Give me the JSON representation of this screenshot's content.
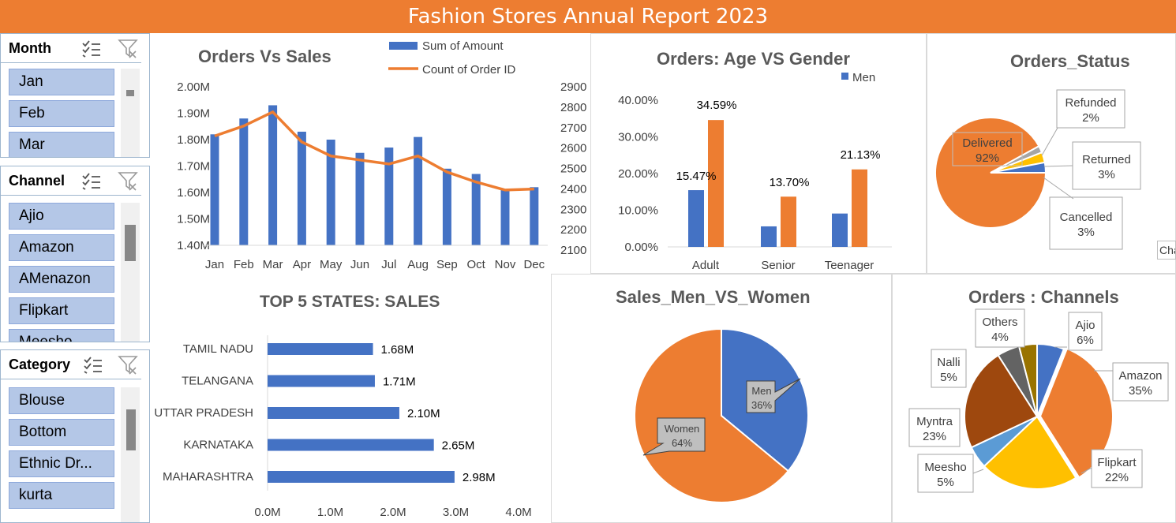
{
  "title": "Fashion Stores Annual Report 2023",
  "slicers": {
    "month": {
      "label": "Month",
      "items": [
        "Jan",
        "Feb",
        "Mar"
      ]
    },
    "channel": {
      "label": "Channel",
      "items": [
        "Ajio",
        "Amazon",
        "AMenazon",
        "Flipkart",
        "Meesho"
      ]
    },
    "category": {
      "label": "Category",
      "items": [
        "Blouse",
        "Bottom",
        "Ethnic Dr...",
        "kurta"
      ]
    }
  },
  "chart_data": [
    {
      "type": "bar",
      "title": "Orders Vs Sales",
      "categories": [
        "Jan",
        "Feb",
        "Mar",
        "Apr",
        "May",
        "Jun",
        "Jul",
        "Aug",
        "Sep",
        "Oct",
        "Nov",
        "Dec"
      ],
      "series": [
        {
          "name": "Sum of Amount",
          "type": "bar",
          "axis": "left",
          "values": [
            1.82,
            1.88,
            1.93,
            1.83,
            1.8,
            1.75,
            1.77,
            1.81,
            1.69,
            1.67,
            1.61,
            1.62
          ],
          "color": "#4472C4"
        },
        {
          "name": "Count of Order ID",
          "type": "line",
          "axis": "right",
          "values": [
            2670,
            2720,
            2790,
            2640,
            2570,
            2550,
            2530,
            2570,
            2490,
            2440,
            2400,
            2405
          ],
          "color": "#ED7D31"
        }
      ],
      "y_ticks": [
        "2.00M",
        "1.90M",
        "1.80M",
        "1.70M",
        "1.60M",
        "1.50M",
        "1.40M"
      ],
      "y2_ticks": [
        "2900",
        "2800",
        "2700",
        "2600",
        "2500",
        "2400",
        "2300",
        "2200",
        "2100"
      ],
      "ylim": [
        1.4,
        2.0
      ],
      "y2lim": [
        2100,
        2900
      ],
      "legend": "top"
    },
    {
      "type": "bar",
      "title": "Orders: Age VS Gender",
      "categories": [
        "Adult",
        "Senior",
        "Teenager"
      ],
      "series": [
        {
          "name": "Men",
          "values": [
            15.47,
            5.6,
            9.1
          ],
          "color": "#4472C4"
        },
        {
          "name": "",
          "values": [
            34.59,
            13.7,
            21.13
          ],
          "color": "#ED7D31"
        }
      ],
      "data_labels": [
        "15.47%",
        "34.59%",
        "13.70%",
        "21.13%"
      ],
      "y_ticks": [
        "40.00%",
        "30.00%",
        "20.00%",
        "10.00%",
        "0.00%"
      ],
      "ylim": [
        0,
        40
      ],
      "legend": "top-right"
    },
    {
      "type": "pie",
      "title": "Orders_Status",
      "labels": [
        "Delivered",
        "Refunded",
        "Returned",
        "Cancelled"
      ],
      "values": [
        92,
        2,
        3,
        3
      ],
      "value_labels": [
        "92%",
        "2%",
        "3%",
        "3%"
      ],
      "colors": [
        "#ED7D31",
        "#A5A5A5",
        "#FFC000",
        "#4472C4"
      ]
    },
    {
      "type": "bar",
      "orientation": "horizontal",
      "title": "TOP 5 STATES: SALES",
      "categories": [
        "TAMIL NADU",
        "TELANGANA",
        "UTTAR PRADESH",
        "KARNATAKA",
        "MAHARASHTRA"
      ],
      "values": [
        1.68,
        1.71,
        2.1,
        2.65,
        2.98
      ],
      "value_labels": [
        "1.68M",
        "1.71M",
        "2.10M",
        "2.65M",
        "2.98M"
      ],
      "x_ticks": [
        "0.0M",
        "1.0M",
        "2.0M",
        "3.0M",
        "4.0M"
      ],
      "xlim": [
        0,
        4.0
      ],
      "color": "#4472C4"
    },
    {
      "type": "pie",
      "title": "Sales_Men_VS_Women",
      "labels": [
        "Men",
        "Women"
      ],
      "values": [
        36,
        64
      ],
      "value_labels": [
        "36%",
        "64%"
      ],
      "colors": [
        "#4472C4",
        "#ED7D31"
      ]
    },
    {
      "type": "pie",
      "title": "Orders : Channels",
      "labels": [
        "Ajio",
        "Amazon",
        "Flipkart",
        "Meesho",
        "Myntra",
        "Nalli",
        "Others"
      ],
      "values": [
        6,
        35,
        22,
        5,
        23,
        5,
        4
      ],
      "value_labels": [
        "6%",
        "35%",
        "22%",
        "5%",
        "23%",
        "5%",
        "4%"
      ],
      "colors": [
        "#4472C4",
        "#ED7D31",
        "#FFC000",
        "#5B9BD5",
        "#9E480E",
        "#636363",
        "#997300"
      ]
    }
  ],
  "overflow_label": "Cha"
}
